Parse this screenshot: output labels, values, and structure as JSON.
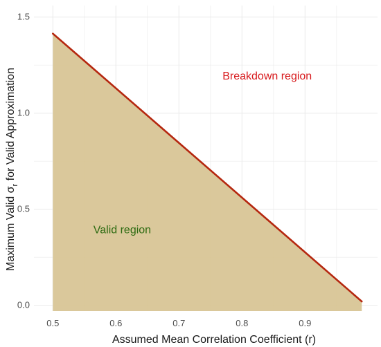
{
  "chart_data": {
    "type": "area",
    "xlabel": "Assumed Mean Correlation Coefficient (r)",
    "ylabel": "Maximum Valid σr for Valid Approximation",
    "ylabel_parts": {
      "before": "Maximum Valid σ",
      "sub": "r",
      "after": " for Valid Approximation"
    },
    "xlim": [
      0.47,
      1.015
    ],
    "ylim": [
      -0.03,
      1.56
    ],
    "x_ticks": [
      0.5,
      0.6,
      0.7,
      0.8,
      0.9
    ],
    "x_tick_labels": [
      "0.5",
      "0.6",
      "0.7",
      "0.8",
      "0.9"
    ],
    "y_ticks": [
      0.0,
      0.5,
      1.0,
      1.5
    ],
    "y_tick_labels": [
      "0.0",
      "0.5",
      "1.0",
      "1.5"
    ],
    "grid": true,
    "series": [
      {
        "x": [
          0.5,
          0.99
        ],
        "y": [
          1.414,
          0.02
        ]
      }
    ],
    "annotations": [
      {
        "text": "Breakdown region",
        "x": 0.84,
        "y": 1.19,
        "color": "#d7191c"
      },
      {
        "text": "Valid region",
        "x": 0.61,
        "y": 0.39,
        "color": "#2e6b12"
      }
    ],
    "colors": {
      "fill": "#d8c596",
      "line": "#b5270f",
      "grid": "#ebebeb",
      "panel": "#ffffff"
    }
  }
}
